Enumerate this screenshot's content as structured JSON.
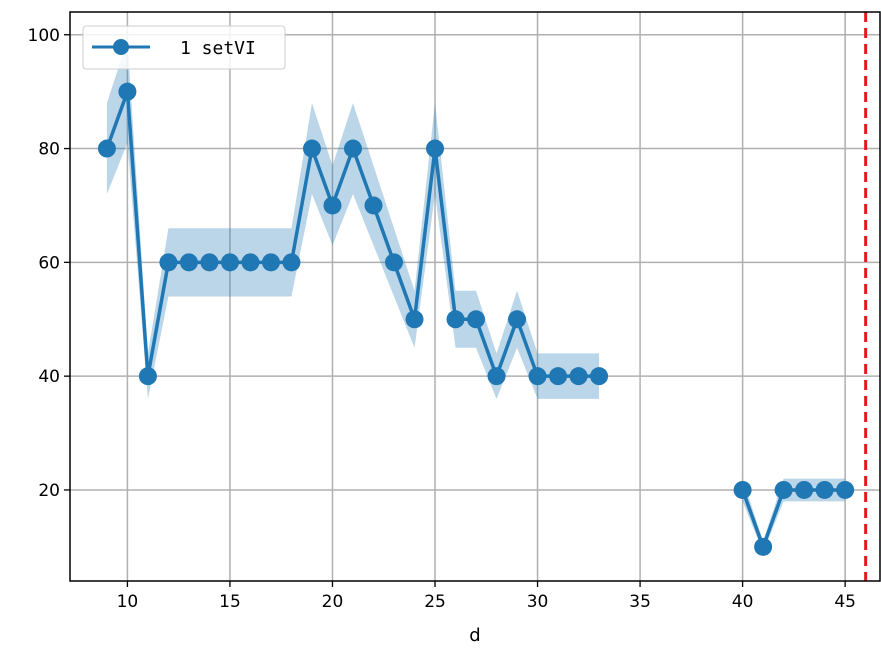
{
  "colors": {
    "series": "#1f77b4",
    "band": "#1f77b4",
    "grid": "#b0b0b0",
    "vline": "#e31a1c"
  },
  "chart_data": {
    "type": "line",
    "title": "",
    "xlabel": "d",
    "ylabel": "",
    "xlim": [
      7.2,
      46.7
    ],
    "ylim": [
      4,
      104
    ],
    "xticks": [
      10,
      15,
      20,
      25,
      30,
      35,
      40,
      45
    ],
    "yticks": [
      20,
      40,
      60,
      80,
      100
    ],
    "grid": true,
    "legend_position": "upper-left",
    "series": [
      {
        "name": "1 setVI",
        "segments": [
          {
            "x": [
              9,
              10,
              11,
              12,
              13,
              14,
              15,
              16,
              17,
              18,
              19,
              20,
              21,
              22,
              23,
              24,
              25,
              26,
              27,
              28,
              29,
              30,
              31,
              32,
              33
            ],
            "y": [
              80,
              90,
              40,
              60,
              60,
              60,
              60,
              60,
              60,
              60,
              80,
              70,
              80,
              70,
              60,
              50,
              80,
              50,
              50,
              40,
              50,
              40,
              40,
              40,
              40
            ],
            "lower": [
              72,
              81,
              36,
              54,
              54,
              54,
              54,
              54,
              54,
              54,
              72,
              63,
              72,
              63,
              54,
              45,
              72,
              45,
              45,
              36,
              45,
              36,
              36,
              36,
              36
            ],
            "upper": [
              88,
              99,
              44,
              66,
              66,
              66,
              66,
              66,
              66,
              66,
              88,
              77,
              88,
              77,
              66,
              55,
              88,
              55,
              55,
              44,
              55,
              44,
              44,
              44,
              44
            ]
          },
          {
            "x": [
              40,
              41,
              42,
              43,
              44,
              45
            ],
            "y": [
              20,
              10,
              20,
              20,
              20,
              20
            ],
            "lower": [
              18,
              9,
              18,
              18,
              18,
              18
            ],
            "upper": [
              22,
              11,
              22,
              22,
              22,
              22
            ]
          }
        ]
      }
    ],
    "vertical_line": {
      "x": 46,
      "style": "dashed"
    }
  }
}
